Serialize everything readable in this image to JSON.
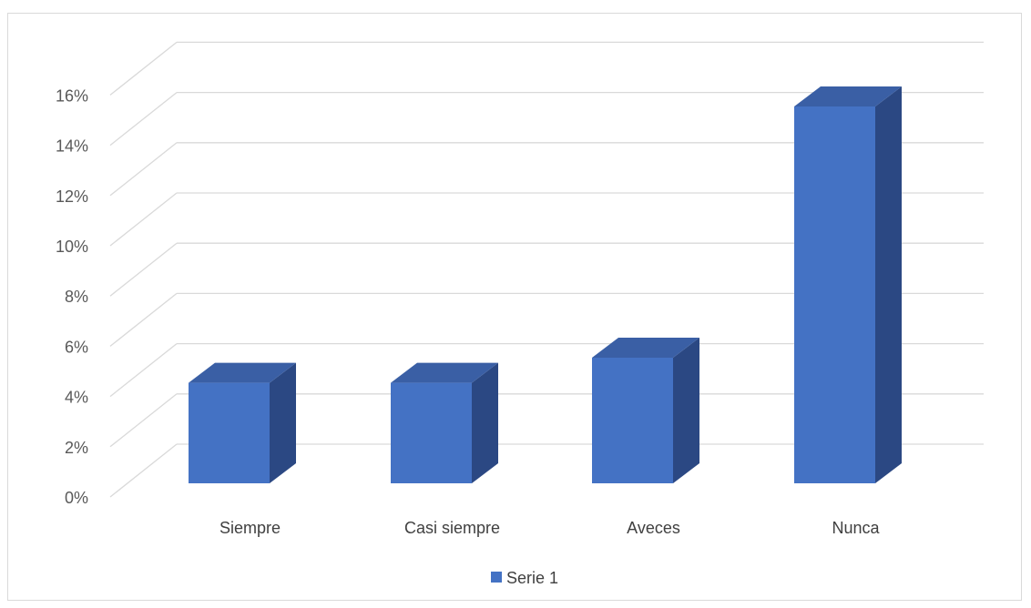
{
  "chart_data": {
    "type": "bar",
    "style": "3d-column",
    "categories": [
      "Siempre",
      "Casi siempre",
      "Aveces",
      "Nunca"
    ],
    "series": [
      {
        "name": "Serie 1",
        "values": [
          0.04,
          0.04,
          0.05,
          0.15
        ]
      }
    ],
    "y_ticks": [
      "0%",
      "2%",
      "4%",
      "6%",
      "8%",
      "10%",
      "12%",
      "14%",
      "16%"
    ],
    "ylim": [
      0,
      0.16
    ],
    "grid": true,
    "legend_position": "bottom",
    "colors": {
      "front": "#4472c4",
      "side": "#2b4883",
      "top": "#3a5fa5",
      "grid": "#d9d9d9"
    }
  }
}
